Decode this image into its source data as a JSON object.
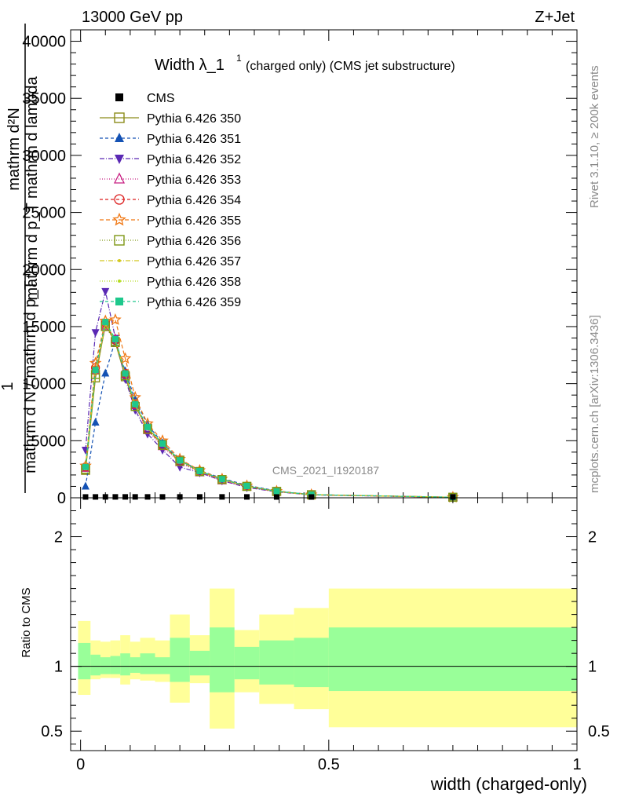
{
  "header": {
    "left": "13000 GeV pp",
    "right": "Z+Jet"
  },
  "side": {
    "rivet": "Rivet 3.1.10, ≥ 200k events",
    "mcplots": "mcplots.cern.ch [arXiv:1306.3436]"
  },
  "watermark": "CMS_2021_I1920187",
  "colors": {
    "band_outer": "#ffff99",
    "band_inner": "#99ff99"
  },
  "chart_data": {
    "type": "line",
    "title_main": "Width λ_1",
    "title_sup": "1",
    "title_rest": "(charged only) (CMS jet substructure)",
    "ylabel_lines": [
      "mathrm d²N",
      "mathrm d p_T mathrm d lambda",
      "1",
      "mathrm d N / mathrm d p_T"
    ],
    "xlabel": "width (charged-only)",
    "ratio_ylabel": "Ratio to CMS",
    "xlim": [
      -0.02,
      1.0
    ],
    "ylim": [
      0,
      41000
    ],
    "ratio_ylim": [
      0.35,
      2.3
    ],
    "x_ticks": [
      {
        "v": 0,
        "label": "0"
      },
      {
        "v": 0.5,
        "label": "0.5"
      },
      {
        "v": 1,
        "label": "1"
      }
    ],
    "y_ticks": [
      {
        "v": 0,
        "label": "0"
      },
      {
        "v": 5000,
        "label": "5000"
      },
      {
        "v": 10000,
        "label": "10000"
      },
      {
        "v": 15000,
        "label": "15000"
      },
      {
        "v": 20000,
        "label": "20000"
      },
      {
        "v": 25000,
        "label": "25000"
      },
      {
        "v": 30000,
        "label": "30000"
      },
      {
        "v": 35000,
        "label": "35000"
      },
      {
        "v": 40000,
        "label": "40000"
      }
    ],
    "ratio_ticks": [
      {
        "v": 0.5,
        "label": "0.5"
      },
      {
        "v": 1,
        "label": "1"
      },
      {
        "v": 2,
        "label": "2"
      }
    ],
    "x": [
      0.01,
      0.03,
      0.05,
      0.07,
      0.09,
      0.11,
      0.135,
      0.165,
      0.2,
      0.24,
      0.285,
      0.335,
      0.395,
      0.465,
      0.75
    ],
    "cms": {
      "name": "CMS",
      "values": [
        5,
        8,
        10,
        10,
        10,
        10,
        10,
        10,
        10,
        10,
        10,
        10,
        5,
        3,
        1
      ]
    },
    "series": [
      {
        "name": "Pythia 6.426 350",
        "color": "#8c8c1a",
        "marker": "square-open",
        "dash": "solid",
        "values": [
          2400,
          10500,
          15200,
          13600,
          10600,
          8000,
          6100,
          4700,
          3300,
          2300,
          1600,
          1000,
          560,
          270,
          45
        ]
      },
      {
        "name": "Pythia 6.426 351",
        "color": "#1452b4",
        "marker": "triangle-filled",
        "dash": "4,3",
        "values": [
          1000,
          6600,
          10900,
          13800,
          11100,
          8600,
          6400,
          4800,
          3300,
          2400,
          1700,
          1100,
          600,
          280,
          50
        ]
      },
      {
        "name": "Pythia 6.426 352",
        "color": "#5a28b4",
        "marker": "tri-down-filled",
        "dash": "6,2,1,2",
        "values": [
          4200,
          14500,
          18100,
          14000,
          10400,
          7700,
          5600,
          4200,
          2700,
          2200,
          1500,
          900,
          520,
          250,
          40
        ]
      },
      {
        "name": "Pythia 6.426 353",
        "color": "#c81e82",
        "marker": "triangle-open",
        "dash": "1,2",
        "values": [
          2600,
          11200,
          15000,
          13900,
          10800,
          8100,
          5900,
          4500,
          3100,
          2200,
          1500,
          950,
          540,
          260,
          42
        ]
      },
      {
        "name": "Pythia 6.426 354",
        "color": "#dc1e1e",
        "marker": "circle-open",
        "dash": "4,3",
        "values": [
          2700,
          11400,
          15300,
          13800,
          10900,
          8200,
          6000,
          4600,
          3200,
          2300,
          1600,
          1000,
          550,
          265,
          44
        ]
      },
      {
        "name": "Pythia 6.426 355",
        "color": "#f07814",
        "marker": "star-open",
        "dash": "5,3",
        "values": [
          2800,
          11800,
          15500,
          15600,
          12200,
          8800,
          6500,
          5000,
          3400,
          2400,
          1650,
          1050,
          580,
          275,
          46
        ]
      },
      {
        "name": "Pythia 6.426 356",
        "color": "#7d9614",
        "marker": "square-open",
        "dash": "1,2",
        "values": [
          2500,
          10800,
          15000,
          13700,
          10700,
          8000,
          6000,
          4600,
          3200,
          2300,
          1600,
          1000,
          555,
          268,
          44
        ]
      },
      {
        "name": "Pythia 6.426 357",
        "color": "#d2c81e",
        "marker": "dot",
        "dash": "6,2,1,2",
        "values": [
          2600,
          11000,
          15200,
          13800,
          10800,
          8100,
          6100,
          4700,
          3250,
          2320,
          1610,
          1010,
          560,
          270,
          45
        ]
      },
      {
        "name": "Pythia 6.426 358",
        "color": "#b4dc1e",
        "marker": "dot",
        "dash": "1,2",
        "values": [
          2650,
          11100,
          15300,
          13850,
          10850,
          8150,
          6150,
          4720,
          3260,
          2330,
          1620,
          1020,
          565,
          272,
          45
        ]
      },
      {
        "name": "Pythia 6.426 359",
        "color": "#1ec88c",
        "marker": "square-filled",
        "dash": "4,3",
        "values": [
          2700,
          11200,
          15400,
          13900,
          10900,
          8200,
          6200,
          4750,
          3280,
          2340,
          1630,
          1030,
          570,
          275,
          46
        ]
      }
    ],
    "ratio_bands": [
      {
        "x0": -0.005,
        "x1": 0.02,
        "outer": [
          0.78,
          1.35
        ],
        "inner": [
          0.9,
          1.18
        ]
      },
      {
        "x0": 0.02,
        "x1": 0.04,
        "outer": [
          0.9,
          1.2
        ],
        "inner": [
          0.93,
          1.09
        ]
      },
      {
        "x0": 0.04,
        "x1": 0.06,
        "outer": [
          0.91,
          1.19
        ],
        "inner": [
          0.94,
          1.07
        ]
      },
      {
        "x0": 0.06,
        "x1": 0.08,
        "outer": [
          0.91,
          1.2
        ],
        "inner": [
          0.94,
          1.08
        ]
      },
      {
        "x0": 0.08,
        "x1": 0.1,
        "outer": [
          0.86,
          1.24
        ],
        "inner": [
          0.93,
          1.1
        ]
      },
      {
        "x0": 0.1,
        "x1": 0.12,
        "outer": [
          0.9,
          1.19
        ],
        "inner": [
          0.95,
          1.07
        ]
      },
      {
        "x0": 0.12,
        "x1": 0.15,
        "outer": [
          0.89,
          1.22
        ],
        "inner": [
          0.94,
          1.1
        ]
      },
      {
        "x0": 0.15,
        "x1": 0.18,
        "outer": [
          0.88,
          1.2
        ],
        "inner": [
          0.94,
          1.07
        ]
      },
      {
        "x0": 0.18,
        "x1": 0.22,
        "outer": [
          0.72,
          1.4
        ],
        "inner": [
          0.88,
          1.22
        ]
      },
      {
        "x0": 0.22,
        "x1": 0.26,
        "outer": [
          0.87,
          1.24
        ],
        "inner": [
          0.93,
          1.12
        ]
      },
      {
        "x0": 0.26,
        "x1": 0.31,
        "outer": [
          0.52,
          1.6
        ],
        "inner": [
          0.8,
          1.3
        ]
      },
      {
        "x0": 0.31,
        "x1": 0.36,
        "outer": [
          0.8,
          1.28
        ],
        "inner": [
          0.9,
          1.15
        ]
      },
      {
        "x0": 0.36,
        "x1": 0.43,
        "outer": [
          0.71,
          1.4
        ],
        "inner": [
          0.86,
          1.2
        ]
      },
      {
        "x0": 0.43,
        "x1": 0.5,
        "outer": [
          0.67,
          1.45
        ],
        "inner": [
          0.84,
          1.22
        ]
      },
      {
        "x0": 0.5,
        "x1": 1.0,
        "outer": [
          0.53,
          1.6
        ],
        "inner": [
          0.81,
          1.3
        ]
      }
    ]
  }
}
